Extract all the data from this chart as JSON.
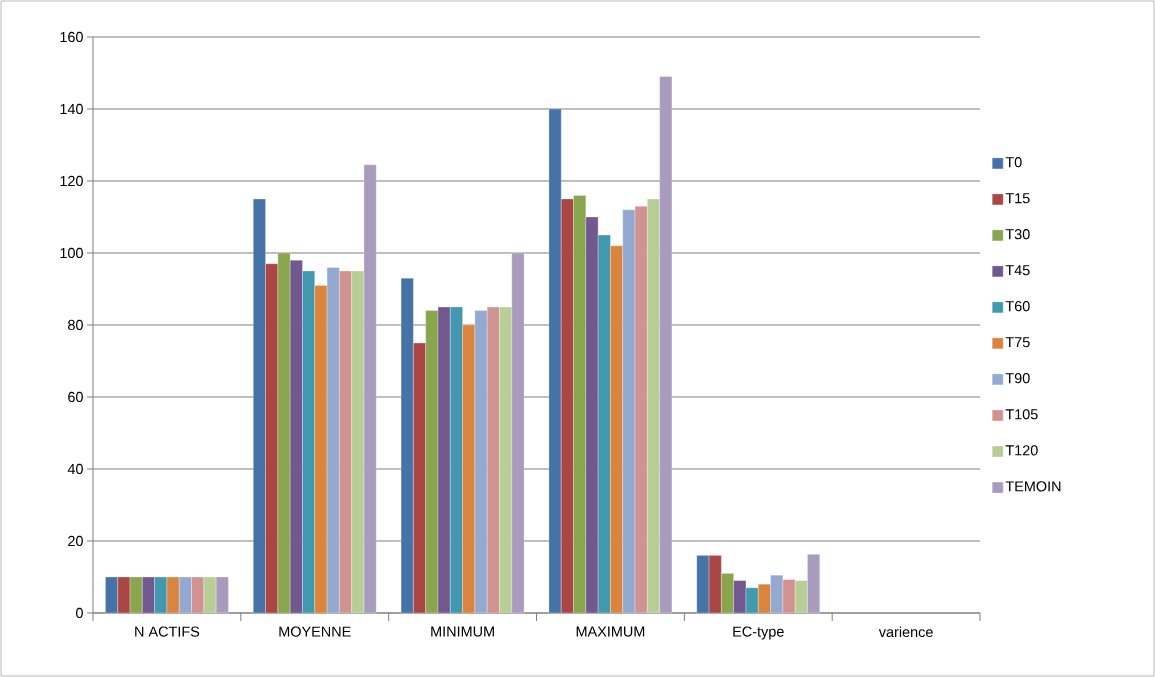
{
  "chart_data": {
    "type": "bar",
    "categories": [
      "N ACTIFS",
      "MOYENNE",
      "MINIMUM",
      "MAXIMUM",
      "EC-type",
      "varience"
    ],
    "ylim": [
      0,
      160
    ],
    "yticks": [
      0,
      20,
      40,
      60,
      80,
      100,
      120,
      140,
      160
    ],
    "grid": "y",
    "legend": "right",
    "series": [
      {
        "name": "T0",
        "color": "#4572a7",
        "values": [
          10,
          115,
          93,
          140,
          16,
          null
        ]
      },
      {
        "name": "T15",
        "color": "#aa4643",
        "values": [
          10,
          97,
          75,
          115,
          16,
          null
        ]
      },
      {
        "name": "T30",
        "color": "#89a54e",
        "values": [
          10,
          100,
          84,
          116,
          11,
          null
        ]
      },
      {
        "name": "T45",
        "color": "#71588f",
        "values": [
          10,
          98,
          85,
          110,
          9,
          null
        ]
      },
      {
        "name": "T60",
        "color": "#4198af",
        "values": [
          10,
          95,
          85,
          105,
          7,
          null
        ]
      },
      {
        "name": "T75",
        "color": "#db843d",
        "values": [
          10,
          91,
          80,
          102,
          8,
          null
        ]
      },
      {
        "name": "T90",
        "color": "#93a9cf",
        "values": [
          10,
          96,
          84,
          112,
          10.5,
          null
        ]
      },
      {
        "name": "T105",
        "color": "#d19392",
        "values": [
          10,
          95,
          85,
          113,
          9.3,
          null
        ]
      },
      {
        "name": "T120",
        "color": "#b9cd96",
        "values": [
          10,
          95,
          85,
          115,
          9,
          null
        ]
      },
      {
        "name": "TEMOIN",
        "color": "#a99bbd",
        "values": [
          10,
          124.5,
          100,
          149,
          16.3,
          null
        ]
      }
    ]
  }
}
